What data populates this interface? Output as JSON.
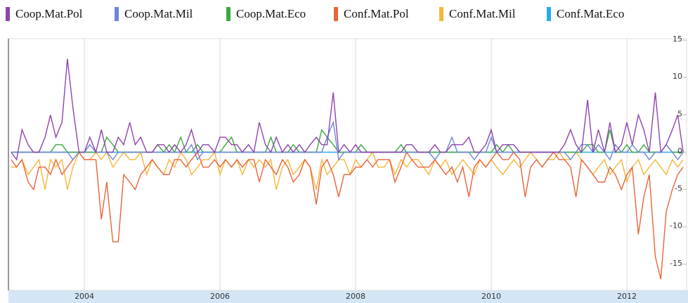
{
  "chart_data": {
    "type": "line",
    "x": [
      2002.92,
      2003.0,
      2003.08,
      2003.17,
      2003.25,
      2003.33,
      2003.42,
      2003.5,
      2003.58,
      2003.67,
      2003.75,
      2003.83,
      2003.92,
      2004.0,
      2004.08,
      2004.17,
      2004.25,
      2004.33,
      2004.42,
      2004.5,
      2004.58,
      2004.67,
      2004.75,
      2004.83,
      2004.92,
      2005.0,
      2005.08,
      2005.17,
      2005.25,
      2005.33,
      2005.42,
      2005.5,
      2005.58,
      2005.67,
      2005.75,
      2005.83,
      2005.92,
      2006.0,
      2006.08,
      2006.17,
      2006.25,
      2006.33,
      2006.42,
      2006.5,
      2006.58,
      2006.67,
      2006.75,
      2006.83,
      2006.92,
      2007.0,
      2007.08,
      2007.17,
      2007.25,
      2007.33,
      2007.42,
      2007.5,
      2007.58,
      2007.67,
      2007.75,
      2007.83,
      2007.92,
      2008.0,
      2008.08,
      2008.17,
      2008.25,
      2008.33,
      2008.42,
      2008.5,
      2008.58,
      2008.67,
      2008.75,
      2008.83,
      2008.92,
      2009.0,
      2009.08,
      2009.17,
      2009.25,
      2009.33,
      2009.42,
      2009.5,
      2009.58,
      2009.67,
      2009.75,
      2009.83,
      2009.92,
      2010.0,
      2010.08,
      2010.17,
      2010.25,
      2010.33,
      2010.42,
      2010.5,
      2010.58,
      2010.67,
      2010.75,
      2010.83,
      2010.92,
      2011.0,
      2011.08,
      2011.17,
      2011.25,
      2011.33,
      2011.42,
      2011.5,
      2011.58,
      2011.67,
      2011.75,
      2011.83,
      2011.92,
      2012.0,
      2012.08,
      2012.17,
      2012.25,
      2012.33,
      2012.42,
      2012.5,
      2012.58,
      2012.67,
      2012.75,
      2012.83
    ],
    "series": [
      {
        "name": "Coop.Mat.Pol",
        "color": "#8e44ad",
        "values": [
          0,
          -1,
          3,
          1,
          0,
          0,
          2,
          5,
          2,
          4,
          12.5,
          6,
          0,
          0,
          2,
          0,
          3,
          0,
          0,
          2,
          1,
          4,
          1,
          2,
          0,
          0,
          1,
          1,
          0,
          1,
          0,
          1,
          3,
          0,
          1,
          1,
          0,
          2,
          2,
          1,
          1,
          0,
          1,
          0,
          4,
          1,
          0,
          2,
          0,
          1,
          0,
          1,
          0,
          1,
          2,
          1,
          1,
          8,
          0,
          1,
          0,
          1,
          0,
          0,
          0,
          0,
          0,
          0,
          0,
          0,
          1,
          1,
          0,
          0,
          0,
          1,
          0,
          0,
          1,
          1,
          1,
          2,
          0,
          0,
          1,
          3,
          0,
          1,
          1,
          1,
          0,
          0,
          0,
          0,
          0,
          0,
          0,
          0,
          1,
          3,
          1,
          0,
          7,
          0,
          3,
          0,
          4,
          0,
          1,
          4,
          1,
          5,
          3,
          0,
          8,
          0,
          1,
          3,
          5,
          0
        ]
      },
      {
        "name": "Coop.Mat.Mil",
        "color": "#6f86d6",
        "values": [
          0,
          0,
          0,
          0,
          0,
          0,
          0,
          0,
          0,
          0,
          0,
          -1,
          0,
          0,
          1,
          0,
          0,
          0,
          -1,
          0,
          0,
          0,
          0,
          0,
          0,
          0,
          0,
          0,
          0,
          0,
          0,
          0,
          1,
          -1,
          0,
          0,
          0,
          0,
          0,
          0,
          0,
          0,
          0,
          0,
          0,
          0,
          0,
          0,
          0,
          0,
          0,
          0,
          0,
          0,
          0,
          0,
          2,
          4,
          -1,
          0,
          0,
          0,
          0,
          0,
          0,
          0,
          0,
          0,
          0,
          0,
          0,
          0,
          0,
          0,
          0,
          -1,
          0,
          0,
          2,
          0,
          0,
          0,
          -1,
          0,
          0,
          2,
          0,
          0,
          0,
          0,
          0,
          0,
          0,
          0,
          0,
          0,
          0,
          0,
          0,
          -1,
          0,
          1,
          1,
          0,
          1,
          0,
          -1,
          1,
          0,
          0,
          1,
          0,
          0,
          -1,
          0,
          0,
          1,
          0,
          -1,
          0
        ]
      },
      {
        "name": "Coop.Mat.Eco",
        "color": "#3fa83f",
        "values": [
          0,
          0,
          0,
          0,
          0,
          0,
          0,
          0,
          1,
          1,
          0,
          0,
          0,
          0,
          0,
          0,
          0,
          2,
          1,
          0,
          0,
          0,
          0,
          0,
          0,
          0,
          1,
          0,
          1,
          0,
          2,
          0,
          0,
          1,
          0,
          0,
          0,
          0,
          1,
          2,
          0,
          0,
          0,
          0,
          0,
          0,
          2,
          0,
          0,
          0,
          1,
          0,
          0,
          0,
          0,
          3,
          2,
          1,
          0,
          0,
          0,
          0,
          1,
          0,
          0,
          0,
          0,
          0,
          0,
          1,
          0,
          0,
          0,
          0,
          0,
          0,
          0,
          0,
          0,
          0,
          0,
          0,
          0,
          0,
          0,
          0,
          1,
          0,
          1,
          0,
          0,
          0,
          0,
          0,
          0,
          0,
          0,
          0,
          0,
          0,
          0,
          0,
          1,
          1,
          0,
          0,
          3,
          0,
          0,
          1,
          0,
          0,
          1,
          0,
          0,
          0,
          1,
          0,
          0,
          0
        ]
      },
      {
        "name": "Conf.Mat.Pol",
        "color": "#e8643a",
        "values": [
          -1,
          -2,
          -1,
          -4,
          -5,
          -2,
          -2,
          -3,
          -1,
          -3,
          -2,
          -1,
          0,
          -1,
          -1,
          -1,
          -9,
          -4,
          -12,
          -12,
          -3,
          -4,
          -5,
          -3,
          -2,
          -1,
          -2,
          -3,
          -3,
          -1,
          -1,
          -2,
          -1,
          0,
          -2,
          -2,
          -1,
          -2,
          -1,
          -2,
          -1,
          -2,
          -1,
          -1,
          -4,
          -1,
          -2,
          -3,
          -1,
          -2,
          -4,
          -3,
          -1,
          -2,
          -7,
          -2,
          -1,
          -3,
          -6,
          -3,
          -3,
          -2,
          -2,
          -1,
          -2,
          -1,
          -1,
          -1,
          -4,
          -2,
          0,
          -1,
          -2,
          -2,
          -2,
          -1,
          -2,
          -3,
          -2,
          -4,
          -2,
          -6,
          -2,
          -1,
          -2,
          -1,
          0,
          -1,
          -1,
          0,
          -1,
          -6,
          -2,
          -1,
          -2,
          -1,
          0,
          -1,
          -1,
          -2,
          -6,
          -1,
          -2,
          -3,
          -4,
          -4,
          -2,
          -3,
          -5,
          -3,
          -2,
          -11,
          -6,
          -3,
          -14,
          -17,
          -8,
          -5,
          -3,
          -2
        ]
      },
      {
        "name": "Conf.Mat.Mil",
        "color": "#f5b63a",
        "values": [
          -2,
          -2,
          -1,
          -3,
          -2,
          -1,
          -5,
          -1,
          -2,
          -1,
          -5,
          -2,
          0,
          -1,
          -1,
          0,
          -1,
          0,
          -2,
          -1,
          0,
          -1,
          -1,
          0,
          -3,
          -1,
          -2,
          -3,
          -1,
          -2,
          0,
          -1,
          -3,
          -2,
          -1,
          -1,
          0,
          -3,
          -1,
          -2,
          -1,
          -3,
          -1,
          -2,
          -1,
          -2,
          -1,
          -5,
          -2,
          -1,
          -3,
          -2,
          -1,
          -2,
          -5,
          -1,
          -3,
          -2,
          -1,
          -1,
          -3,
          -1,
          -2,
          -1,
          0,
          -2,
          -2,
          -1,
          -3,
          -1,
          -2,
          -1,
          -1,
          -2,
          -3,
          -1,
          -2,
          -1,
          -3,
          -2,
          -1,
          -2,
          -3,
          -1,
          -2,
          -1,
          -2,
          -3,
          -2,
          -1,
          -2,
          -1,
          0,
          -1,
          -2,
          -1,
          -1,
          0,
          -1,
          -1,
          0,
          -1,
          -2,
          -3,
          -2,
          -1,
          -3,
          -2,
          -1,
          -4,
          -2,
          -1,
          -3,
          -2,
          -1,
          -2,
          -3,
          -1,
          -2,
          -1
        ]
      },
      {
        "name": "Conf.Mat.Eco",
        "color": "#29aaf0",
        "values": [
          0,
          0,
          0,
          0,
          0,
          0,
          0,
          0,
          0,
          0,
          0,
          0,
          0,
          0,
          0,
          0,
          0,
          0,
          0,
          0,
          0,
          0,
          0,
          0,
          0,
          0,
          0,
          0,
          0,
          0,
          0,
          0,
          0,
          0,
          0,
          0,
          0,
          0,
          0,
          0,
          0,
          0,
          0,
          0,
          0,
          0,
          0,
          0,
          0,
          0,
          0,
          0,
          0,
          0,
          0,
          0,
          0,
          0,
          0,
          0,
          0,
          0,
          0,
          0,
          0,
          0,
          0,
          0,
          0,
          0,
          0,
          0,
          0,
          0,
          0,
          0,
          0,
          0,
          0,
          0,
          0,
          0,
          0,
          0,
          0,
          0,
          0,
          0,
          0,
          0,
          0,
          0,
          0,
          0,
          0,
          0,
          0,
          0,
          0,
          0,
          0,
          0,
          0,
          0,
          0,
          0,
          0,
          0,
          0,
          0,
          0,
          0,
          0,
          0,
          0,
          0,
          0,
          0,
          0,
          0
        ]
      }
    ],
    "xlim": [
      2002.88,
      2012.86
    ],
    "xticks": [
      2004,
      2006,
      2008,
      2010,
      2012
    ],
    "ylim": [
      -18.5,
      15.2
    ],
    "yticks": [
      -15,
      -10,
      -5,
      0,
      5,
      10,
      15
    ],
    "grid": "x"
  }
}
